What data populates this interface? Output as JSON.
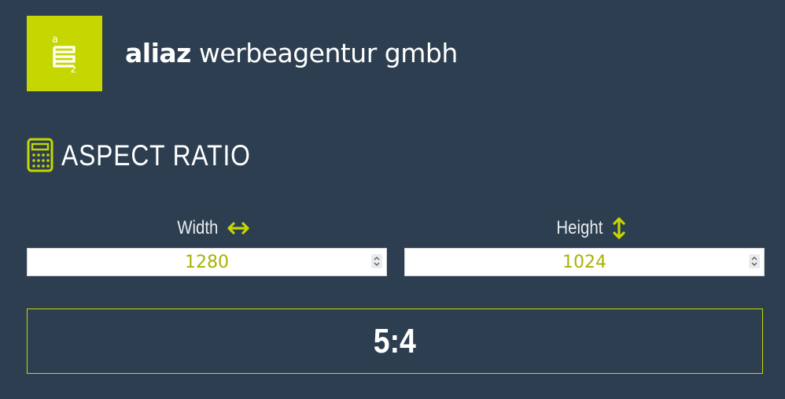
{
  "header": {
    "brand_bold": "aliaz",
    "brand_rest": " werbeagentur gmbh",
    "logo_icon": "aliaz-logo-icon",
    "logo_color": "#c5d600"
  },
  "title": {
    "icon": "calculator-icon",
    "text": "ASPECT RATIO"
  },
  "fields": {
    "width": {
      "label": "Width",
      "icon": "horizontal-arrow-icon",
      "value": "1280"
    },
    "height": {
      "label": "Height",
      "icon": "vertical-arrow-icon",
      "value": "1024"
    }
  },
  "result": {
    "value": "5:4"
  },
  "colors": {
    "background": "#2c3e50",
    "accent": "#c5d600",
    "input_text": "#a9b200"
  }
}
